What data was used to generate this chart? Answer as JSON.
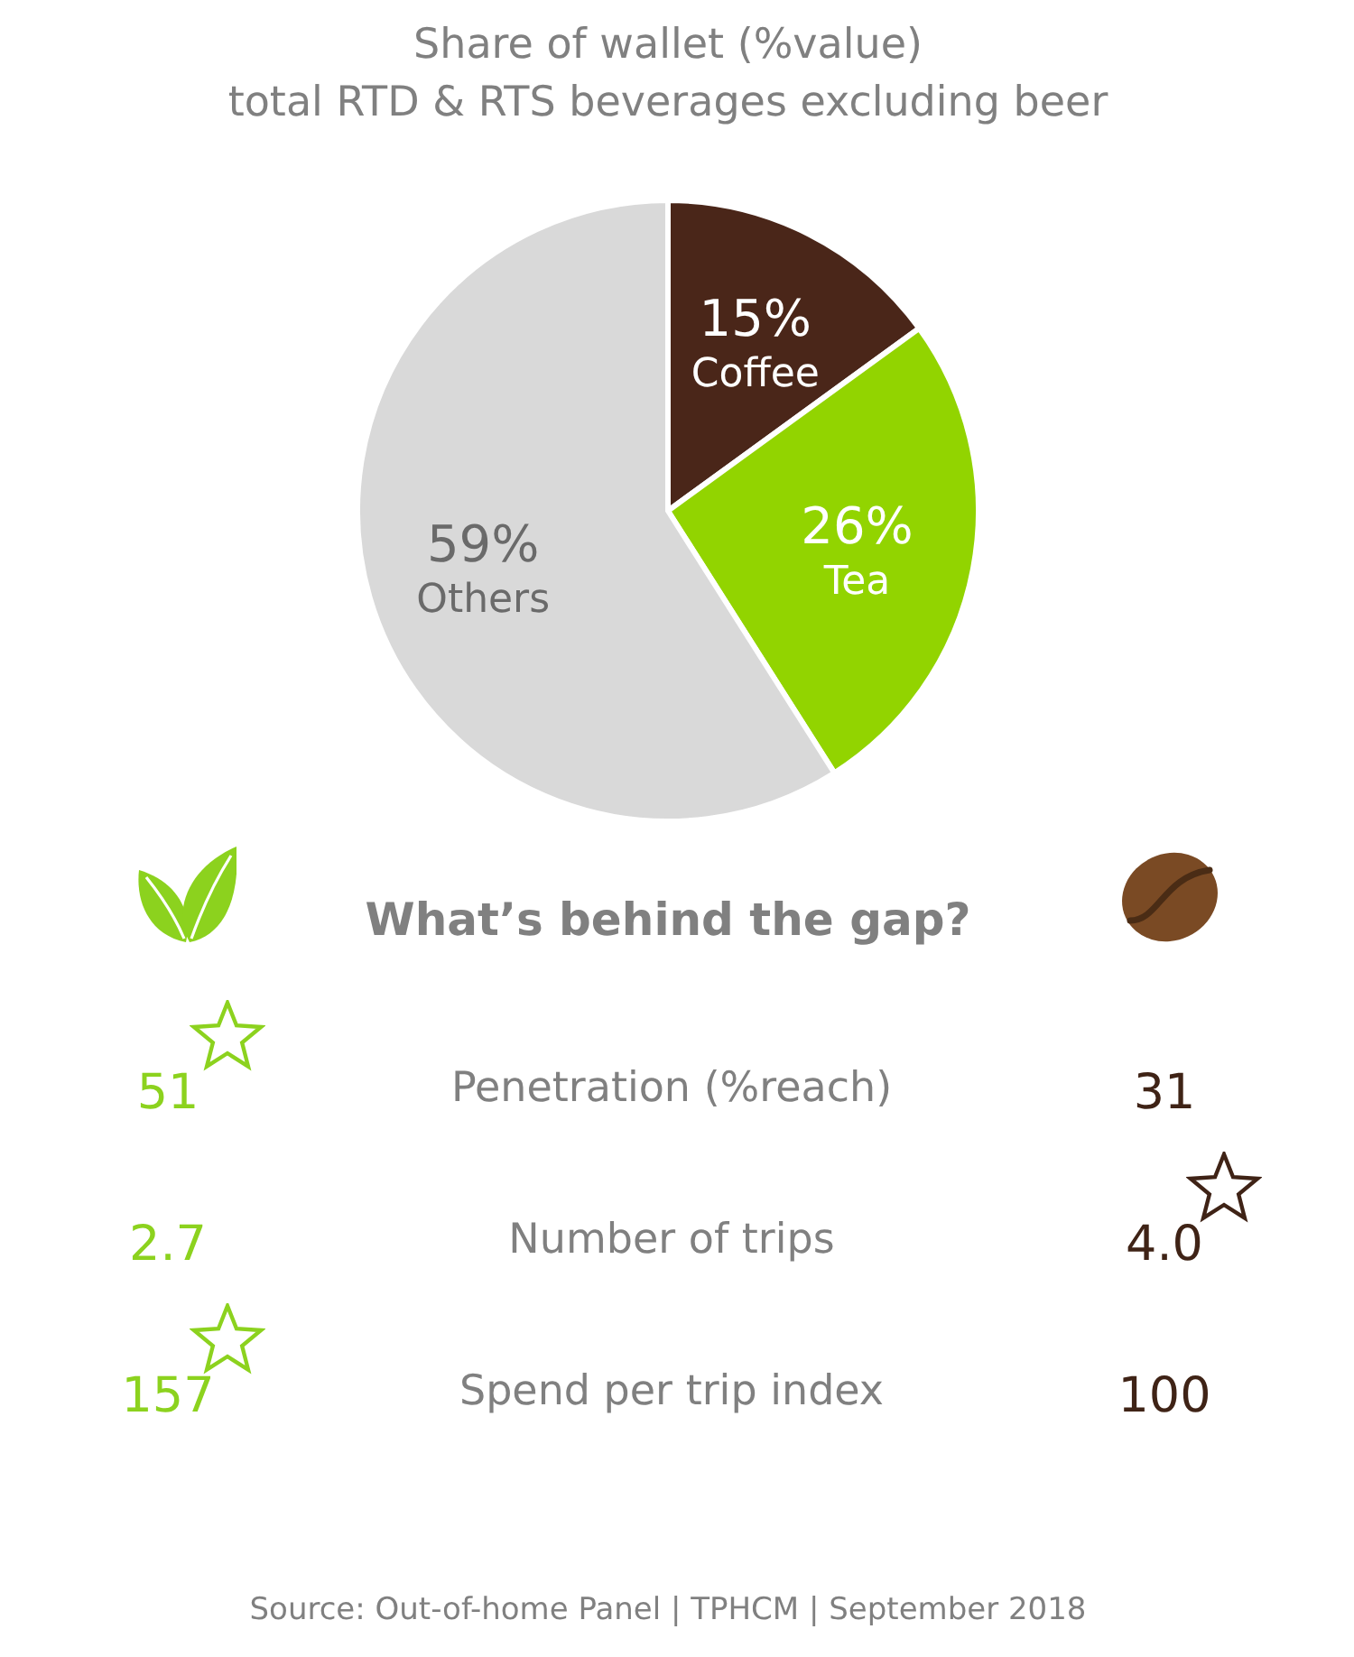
{
  "chart_data": [
    {
      "type": "pie",
      "title": "Share of wallet (%value)",
      "subtitle": "total RTD & RTS beverages excluding beer",
      "categories": [
        "Coffee",
        "Tea",
        "Others"
      ],
      "values": [
        15,
        26,
        59
      ],
      "value_labels": [
        "15%",
        "26%",
        "59%"
      ],
      "colors": [
        "#4a2619",
        "#92d400",
        "#d9d9d9"
      ]
    },
    {
      "type": "other",
      "title": "What’s behind the gap?",
      "categories": [
        "Penetration (%reach)",
        "Number of trips",
        "Spend per trip index"
      ],
      "series": [
        {
          "color": "#8cd21e",
          "values": [
            51,
            2.7,
            157
          ],
          "value_labels": [
            "51",
            "2.7",
            "157"
          ]
        },
        {
          "color": "#3f2316",
          "values": [
            31,
            4.0,
            100
          ],
          "value_labels": [
            "31",
            "4.0",
            "100"
          ]
        }
      ],
      "annotations": [
        "Source: Out-of-home Panel | TPHCM | September 2018"
      ]
    }
  ]
}
